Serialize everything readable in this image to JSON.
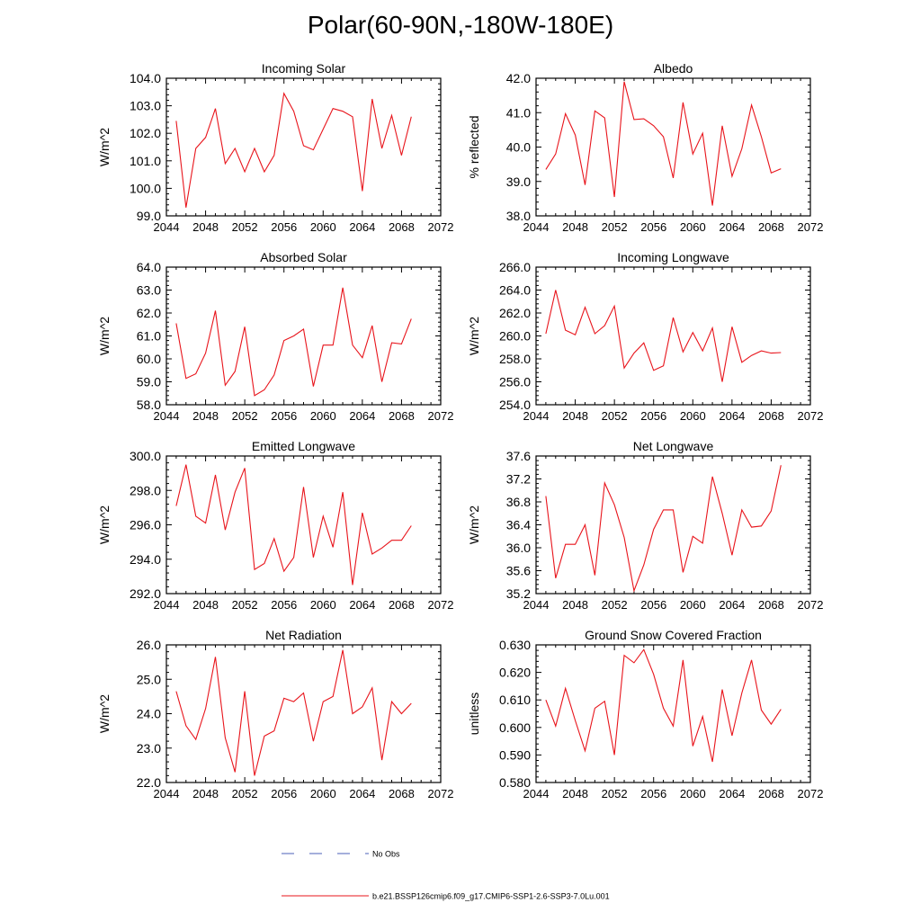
{
  "figure": {
    "title": "Polar(60-90N,-180W-180E)",
    "legend": {
      "items": [
        {
          "label": "No Obs",
          "color": "#4b5fb8",
          "dash": true
        },
        {
          "label": "b.e21.BSSP126cmip6.f09_g17.CMIP6-SSP1-2.6-SSP3-7.0Lu.001",
          "color": "#e8141b",
          "dash": false
        }
      ]
    }
  },
  "chart_data": [
    {
      "type": "line",
      "title": "Incoming Solar",
      "ylabel": "W/m^2",
      "xlim": [
        2044,
        2072
      ],
      "ylim": [
        99.0,
        104.0
      ],
      "xticks": [
        2044,
        2048,
        2052,
        2056,
        2060,
        2064,
        2068,
        2072
      ],
      "yticks": [
        99.0,
        100.0,
        101.0,
        102.0,
        103.0,
        104.0
      ],
      "ytick_labels": [
        "99.0",
        "100.0",
        "101.0",
        "102.0",
        "103.0",
        "104.0"
      ],
      "series": [
        {
          "color": "#e8141b",
          "x": [
            2045,
            2046,
            2047,
            2048,
            2049,
            2050,
            2051,
            2052,
            2053,
            2054,
            2055,
            2056,
            2057,
            2058,
            2059,
            2060,
            2061,
            2062,
            2063,
            2064,
            2065,
            2066,
            2067,
            2068,
            2069
          ],
          "y": [
            102.45,
            99.3,
            101.45,
            101.85,
            102.9,
            100.9,
            101.45,
            100.6,
            101.45,
            100.6,
            101.2,
            103.45,
            102.8,
            101.55,
            101.4,
            102.15,
            102.9,
            102.8,
            102.6,
            99.9,
            103.25,
            101.45,
            102.65,
            101.2,
            102.6
          ]
        }
      ]
    },
    {
      "type": "line",
      "title": "Albedo",
      "ylabel": "% reflected",
      "xlim": [
        2044,
        2072
      ],
      "ylim": [
        38.0,
        42.0
      ],
      "xticks": [
        2044,
        2048,
        2052,
        2056,
        2060,
        2064,
        2068,
        2072
      ],
      "yticks": [
        38.0,
        39.0,
        40.0,
        41.0,
        42.0
      ],
      "ytick_labels": [
        "38.0",
        "39.0",
        "40.0",
        "41.0",
        "42.0"
      ],
      "series": [
        {
          "color": "#e8141b",
          "x": [
            2045,
            2046,
            2047,
            2048,
            2049,
            2050,
            2051,
            2052,
            2053,
            2054,
            2055,
            2056,
            2057,
            2058,
            2059,
            2060,
            2061,
            2062,
            2063,
            2064,
            2065,
            2066,
            2067,
            2068,
            2069
          ],
          "y": [
            39.35,
            39.8,
            40.97,
            40.35,
            38.9,
            41.05,
            40.85,
            38.55,
            41.9,
            40.8,
            40.82,
            40.62,
            40.3,
            39.1,
            41.3,
            39.8,
            40.4,
            38.3,
            40.62,
            39.15,
            39.95,
            41.22,
            40.3,
            39.25,
            39.37
          ]
        }
      ]
    },
    {
      "type": "line",
      "title": "Absorbed Solar",
      "ylabel": "W/m^2",
      "xlim": [
        2044,
        2072
      ],
      "ylim": [
        58.0,
        64.0
      ],
      "xticks": [
        2044,
        2048,
        2052,
        2056,
        2060,
        2064,
        2068,
        2072
      ],
      "yticks": [
        58.0,
        59.0,
        60.0,
        61.0,
        62.0,
        63.0,
        64.0
      ],
      "ytick_labels": [
        "58.0",
        "59.0",
        "60.0",
        "61.0",
        "62.0",
        "63.0",
        "64.0"
      ],
      "series": [
        {
          "color": "#e8141b",
          "x": [
            2045,
            2046,
            2047,
            2048,
            2049,
            2050,
            2051,
            2052,
            2053,
            2054,
            2055,
            2056,
            2057,
            2058,
            2059,
            2060,
            2061,
            2062,
            2063,
            2064,
            2065,
            2066,
            2067,
            2068,
            2069
          ],
          "y": [
            61.55,
            59.15,
            59.35,
            60.25,
            62.1,
            58.85,
            59.45,
            61.4,
            58.4,
            58.65,
            59.3,
            60.8,
            61.0,
            61.3,
            58.8,
            60.6,
            60.6,
            63.1,
            60.6,
            60.05,
            61.45,
            59.0,
            60.7,
            60.65,
            61.75
          ]
        }
      ]
    },
    {
      "type": "line",
      "title": "Incoming Longwave",
      "ylabel": "W/m^2",
      "xlim": [
        2044,
        2072
      ],
      "ylim": [
        254.0,
        266.0
      ],
      "xticks": [
        2044,
        2048,
        2052,
        2056,
        2060,
        2064,
        2068,
        2072
      ],
      "yticks": [
        254.0,
        256.0,
        258.0,
        260.0,
        262.0,
        264.0,
        266.0
      ],
      "ytick_labels": [
        "254.0",
        "256.0",
        "258.0",
        "260.0",
        "262.0",
        "264.0",
        "266.0"
      ],
      "series": [
        {
          "color": "#e8141b",
          "x": [
            2045,
            2046,
            2047,
            2048,
            2049,
            2050,
            2051,
            2052,
            2053,
            2054,
            2055,
            2056,
            2057,
            2058,
            2059,
            2060,
            2061,
            2062,
            2063,
            2064,
            2065,
            2066,
            2067,
            2068,
            2069
          ],
          "y": [
            260.2,
            264.0,
            260.5,
            260.1,
            262.5,
            260.2,
            260.9,
            262.6,
            257.2,
            258.5,
            259.4,
            257.0,
            257.4,
            261.6,
            258.6,
            260.3,
            258.7,
            260.7,
            256.0,
            260.8,
            257.7,
            258.3,
            258.7,
            258.5,
            258.55
          ]
        }
      ]
    },
    {
      "type": "line",
      "title": "Emitted Longwave",
      "ylabel": "W/m^2",
      "xlim": [
        2044,
        2072
      ],
      "ylim": [
        292.0,
        300.0
      ],
      "xticks": [
        2044,
        2048,
        2052,
        2056,
        2060,
        2064,
        2068,
        2072
      ],
      "yticks": [
        292.0,
        294.0,
        296.0,
        298.0,
        300.0
      ],
      "ytick_labels": [
        "292.0",
        "294.0",
        "296.0",
        "298.0",
        "300.0"
      ],
      "series": [
        {
          "color": "#e8141b",
          "x": [
            2045,
            2046,
            2047,
            2048,
            2049,
            2050,
            2051,
            2052,
            2053,
            2054,
            2055,
            2056,
            2057,
            2058,
            2059,
            2060,
            2061,
            2062,
            2063,
            2064,
            2065,
            2066,
            2067,
            2068,
            2069
          ],
          "y": [
            297.1,
            299.5,
            296.5,
            296.1,
            298.9,
            295.7,
            297.9,
            299.3,
            293.4,
            293.75,
            295.2,
            293.3,
            294.1,
            298.2,
            294.1,
            296.5,
            294.7,
            297.9,
            292.5,
            296.7,
            294.3,
            294.65,
            295.1,
            295.1,
            295.95
          ]
        }
      ]
    },
    {
      "type": "line",
      "title": "Net Longwave",
      "ylabel": "W/m^2",
      "xlim": [
        2044,
        2072
      ],
      "ylim": [
        35.2,
        37.6
      ],
      "xticks": [
        2044,
        2048,
        2052,
        2056,
        2060,
        2064,
        2068,
        2072
      ],
      "yticks": [
        35.2,
        35.6,
        36.0,
        36.4,
        36.8,
        37.2,
        37.6
      ],
      "ytick_labels": [
        "35.2",
        "35.6",
        "36.0",
        "36.4",
        "36.8",
        "37.2",
        "37.6"
      ],
      "series": [
        {
          "color": "#e8141b",
          "x": [
            2045,
            2046,
            2047,
            2048,
            2049,
            2050,
            2051,
            2052,
            2053,
            2054,
            2055,
            2056,
            2057,
            2058,
            2059,
            2060,
            2061,
            2062,
            2063,
            2064,
            2065,
            2066,
            2067,
            2068,
            2069
          ],
          "y": [
            36.9,
            35.47,
            36.06,
            36.06,
            36.4,
            35.52,
            37.13,
            36.75,
            36.18,
            35.25,
            35.7,
            36.32,
            36.66,
            36.66,
            35.57,
            36.2,
            36.08,
            37.24,
            36.6,
            35.87,
            36.66,
            36.36,
            36.38,
            36.64,
            37.44
          ]
        }
      ]
    },
    {
      "type": "line",
      "title": "Net Radiation",
      "ylabel": "W/m^2",
      "xlim": [
        2044,
        2072
      ],
      "ylim": [
        22.0,
        26.0
      ],
      "xticks": [
        2044,
        2048,
        2052,
        2056,
        2060,
        2064,
        2068,
        2072
      ],
      "yticks": [
        22.0,
        23.0,
        24.0,
        25.0,
        26.0
      ],
      "ytick_labels": [
        "22.0",
        "23.0",
        "24.0",
        "25.0",
        "26.0"
      ],
      "series": [
        {
          "color": "#e8141b",
          "x": [
            2045,
            2046,
            2047,
            2048,
            2049,
            2050,
            2051,
            2052,
            2053,
            2054,
            2055,
            2056,
            2057,
            2058,
            2059,
            2060,
            2061,
            2062,
            2063,
            2064,
            2065,
            2066,
            2067,
            2068,
            2069
          ],
          "y": [
            24.65,
            23.65,
            23.25,
            24.15,
            25.65,
            23.3,
            22.3,
            24.65,
            22.2,
            23.35,
            23.5,
            24.45,
            24.35,
            24.6,
            23.2,
            24.35,
            24.5,
            25.85,
            24.0,
            24.2,
            24.75,
            22.65,
            24.35,
            24.0,
            24.3
          ]
        }
      ]
    },
    {
      "type": "line",
      "title": "Ground Snow Covered Fraction",
      "ylabel": "unitless",
      "xlim": [
        2044,
        2072
      ],
      "ylim": [
        0.58,
        0.63
      ],
      "xticks": [
        2044,
        2048,
        2052,
        2056,
        2060,
        2064,
        2068,
        2072
      ],
      "yticks": [
        0.58,
        0.59,
        0.6,
        0.61,
        0.62,
        0.63
      ],
      "ytick_labels": [
        "0.580",
        "0.590",
        "0.600",
        "0.610",
        "0.620",
        "0.630"
      ],
      "series": [
        {
          "color": "#e8141b",
          "x": [
            2045,
            2046,
            2047,
            2048,
            2049,
            2050,
            2051,
            2052,
            2053,
            2054,
            2055,
            2056,
            2057,
            2058,
            2059,
            2060,
            2061,
            2062,
            2063,
            2064,
            2065,
            2066,
            2067,
            2068,
            2069
          ],
          "y": [
            0.61,
            0.6005,
            0.6142,
            0.6025,
            0.5915,
            0.607,
            0.6095,
            0.59,
            0.6262,
            0.6235,
            0.6283,
            0.6193,
            0.607,
            0.6005,
            0.6245,
            0.5932,
            0.604,
            0.5875,
            0.6138,
            0.597,
            0.6125,
            0.6245,
            0.6063,
            0.6012,
            0.6066
          ]
        }
      ]
    }
  ]
}
